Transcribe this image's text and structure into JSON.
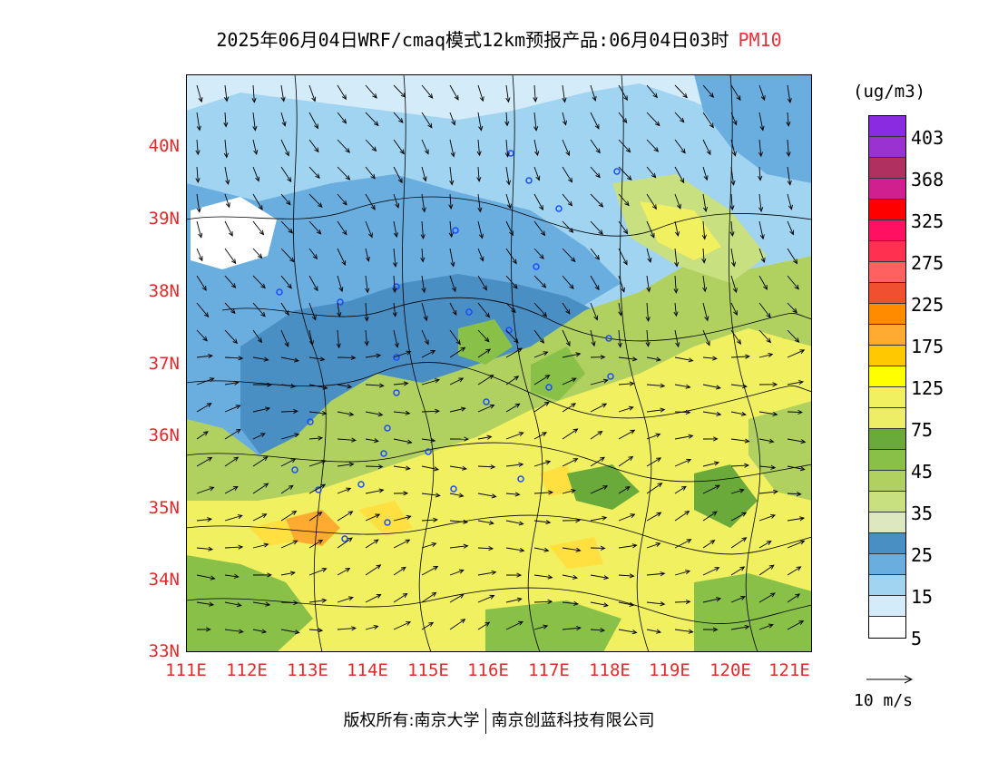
{
  "title": {
    "main": "2025年06月04日WRF/cmaq模式12km预报产品:06月04日03时",
    "pollutant": "PM10",
    "pollutant_color": "#e8303a"
  },
  "axes": {
    "lat_labels": [
      "40N",
      "39N",
      "38N",
      "37N",
      "36N",
      "35N",
      "34N",
      "33N"
    ],
    "lon_labels": [
      "111E",
      "112E",
      "113E",
      "114E",
      "115E",
      "116E",
      "117E",
      "118E",
      "119E",
      "120E",
      "121E"
    ],
    "lat_range": [
      33,
      41
    ],
    "lon_range": [
      111,
      121.35
    ],
    "label_color": "#e02b2b"
  },
  "colorbar": {
    "unit": "(ug/m3)",
    "colors": [
      "#8a2be2",
      "#9a32d2",
      "#b03060",
      "#d02090",
      "#ff0000",
      "#ff1060",
      "#ff3050",
      "#ff6060",
      "#f05030",
      "#ff8c00",
      "#ffaa30",
      "#ffc800",
      "#ffff00",
      "#f0f060",
      "#eeee66",
      "#6aaa3a",
      "#88c048",
      "#b0d060",
      "#c8e080",
      "#dde8c0",
      "#4a8fc4",
      "#6aaee0",
      "#a0d4f0",
      "#d4ecfa",
      "#ffffff"
    ],
    "labels": [
      "403",
      "368",
      "325",
      "275",
      "225",
      "175",
      "125",
      "75",
      "45",
      "35",
      "25",
      "15",
      "5"
    ]
  },
  "vector": {
    "reference_label": "10 m/s"
  },
  "footer": {
    "left": "版权所有:南京大学",
    "right": "南京创蓝科技有限公司"
  }
}
